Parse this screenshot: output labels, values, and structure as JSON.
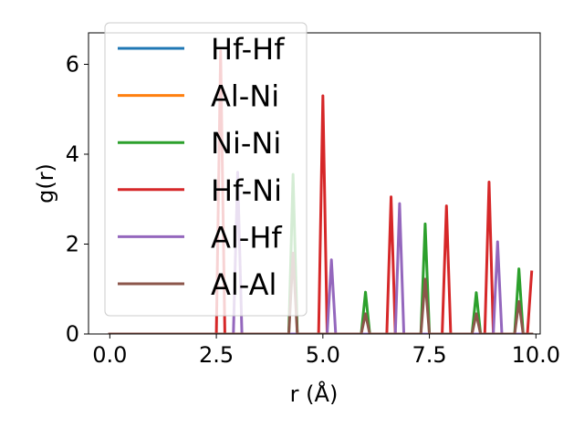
{
  "chart_data": {
    "type": "line",
    "xlabel": "r (Å)",
    "ylabel": "g(r)",
    "xlim": [
      -0.5,
      10.1
    ],
    "ylim": [
      0,
      6.7
    ],
    "xticks": [
      0.0,
      2.5,
      5.0,
      7.5,
      10.0
    ],
    "xtick_labels": [
      "0.0",
      "2.5",
      "5.0",
      "7.5",
      "10.0"
    ],
    "yticks": [
      0,
      2,
      4,
      6
    ],
    "ytick_labels": [
      "0",
      "2",
      "4",
      "6"
    ],
    "grid": false,
    "legend_position": "upper-left",
    "series": [
      {
        "name": "Hf-Hf",
        "color": "#1f77b4",
        "x": [
          0.0,
          9.9
        ],
        "y": [
          0.0,
          0.0
        ]
      },
      {
        "name": "Al-Ni",
        "color": "#ff7f0e",
        "x": [
          0.0,
          9.9
        ],
        "y": [
          0.0,
          0.0
        ]
      },
      {
        "name": "Ni-Ni",
        "color": "#2ca02c",
        "x": [
          0.0,
          4.2,
          4.3,
          4.4,
          5.9,
          6.0,
          6.1,
          7.3,
          7.4,
          7.5,
          8.5,
          8.6,
          8.7,
          9.5,
          9.6,
          9.7,
          9.9
        ],
        "y": [
          0.0,
          0.0,
          3.55,
          0.0,
          0.0,
          0.93,
          0.0,
          0.0,
          2.45,
          0.0,
          0.0,
          0.92,
          0.0,
          0.0,
          1.45,
          0.0,
          0.0
        ]
      },
      {
        "name": "Hf-Ni",
        "color": "#d62728",
        "x": [
          0.0,
          2.5,
          2.6,
          2.7,
          4.9,
          5.0,
          5.1,
          6.5,
          6.6,
          6.7,
          7.8,
          7.9,
          8.0,
          8.8,
          8.9,
          9.0,
          9.8,
          9.9
        ],
        "y": [
          0.0,
          0.0,
          6.3,
          0.0,
          0.0,
          5.3,
          0.0,
          0.0,
          3.05,
          0.0,
          0.0,
          2.85,
          0.0,
          0.0,
          3.38,
          0.0,
          0.0,
          1.38
        ]
      },
      {
        "name": "Al-Hf",
        "color": "#9467bd",
        "x": [
          0.0,
          2.9,
          3.0,
          3.1,
          5.1,
          5.2,
          5.3,
          6.7,
          6.8,
          6.9,
          8.9,
          9.0,
          9.1,
          9.2,
          9.9
        ],
        "y": [
          0.0,
          0.0,
          3.6,
          0.0,
          0.0,
          1.65,
          0.0,
          0.0,
          2.9,
          0.0,
          0.0,
          0.0,
          2.05,
          0.0,
          0.0
        ]
      },
      {
        "name": "Al-Al",
        "color": "#8c564b",
        "x": [
          0.0,
          4.2,
          4.3,
          4.4,
          5.9,
          6.0,
          6.1,
          7.3,
          7.4,
          7.5,
          8.5,
          8.6,
          8.7,
          9.5,
          9.6,
          9.7,
          9.9
        ],
        "y": [
          0.0,
          0.0,
          1.8,
          0.0,
          0.0,
          0.45,
          0.0,
          0.0,
          1.22,
          0.0,
          0.0,
          0.45,
          0.0,
          0.0,
          0.72,
          0.0,
          0.0
        ]
      }
    ]
  }
}
